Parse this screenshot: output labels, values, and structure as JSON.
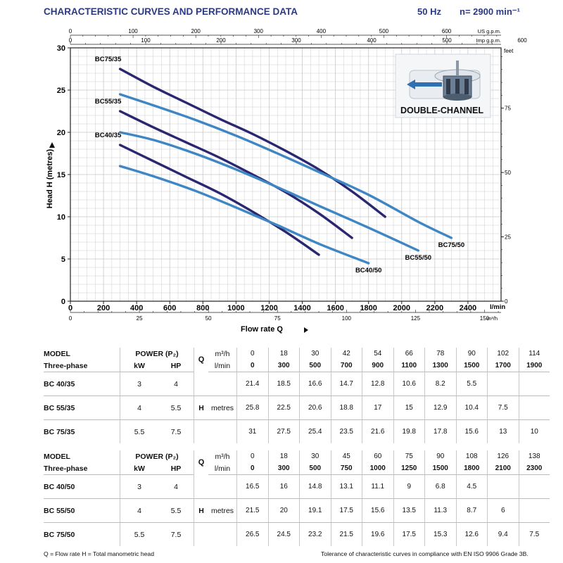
{
  "header": {
    "title": "CHARACTERISTIC CURVES AND PERFORMANCE DATA",
    "freq": "50 Hz",
    "speed": "n= 2900 min⁻¹"
  },
  "badge": {
    "label": "DOUBLE-CHANNEL"
  },
  "colors": {
    "navy": "#2a2770",
    "blue": "#3f86c4",
    "grid": "#c8c8c8",
    "title": "#2b3a82"
  },
  "chart_data": {
    "type": "line",
    "title": "CHARACTERISTIC CURVES AND PERFORMANCE DATA",
    "xlabel": "Flow rate Q",
    "ylabel": "Head H (metres)",
    "xlim": [
      0,
      2600
    ],
    "ylim": [
      0,
      30
    ],
    "x_unit": "l/min",
    "x_ticks": [
      "0",
      "200",
      "400",
      "600",
      "800",
      "1000",
      "1200",
      "1400",
      "1600",
      "1800",
      "2000",
      "2200",
      "2400"
    ],
    "y_ticks": [
      "0",
      "5",
      "10",
      "15",
      "20",
      "25",
      "30"
    ],
    "top_axis_us": {
      "unit": "US g.p.m.",
      "ticks": [
        "0",
        "100",
        "200",
        "300",
        "400",
        "500",
        "600"
      ],
      "lpm_per_unit": 3.785
    },
    "top_axis_imp": {
      "unit": "Imp g.p.m.",
      "ticks": [
        "0",
        "100",
        "200",
        "300",
        "400",
        "500",
        "600"
      ],
      "lpm_per_unit": 4.546
    },
    "right_axis_feet": {
      "unit": "feet",
      "ticks": [
        "0",
        "25",
        "50",
        "75"
      ],
      "m_per_unit": 0.3048
    },
    "bottom_axis_m3h": {
      "unit": "m³/h",
      "ticks": [
        "0",
        "25",
        "50",
        "75",
        "100",
        "125",
        "150"
      ],
      "lpm_per_unit": 16.667
    },
    "grid": true,
    "series": [
      {
        "name": "BC40/35",
        "color": "navy",
        "label_pos": "left",
        "x": [
          300,
          500,
          700,
          900,
          1100,
          1300,
          1500
        ],
        "y": [
          18.5,
          16.6,
          14.7,
          12.8,
          10.6,
          8.2,
          5.5
        ]
      },
      {
        "name": "BC55/35",
        "color": "navy",
        "label_pos": "left",
        "x": [
          300,
          500,
          700,
          900,
          1100,
          1300,
          1500,
          1700
        ],
        "y": [
          22.5,
          20.6,
          18.8,
          17,
          15,
          12.9,
          10.4,
          7.5
        ]
      },
      {
        "name": "BC75/35",
        "color": "navy",
        "label_pos": "left",
        "x": [
          300,
          500,
          700,
          900,
          1100,
          1300,
          1500,
          1700,
          1900
        ],
        "y": [
          27.5,
          25.4,
          23.5,
          21.6,
          19.8,
          17.8,
          15.6,
          13,
          10
        ]
      },
      {
        "name": "BC40/50",
        "color": "blue",
        "label_pos": "below",
        "x": [
          300,
          500,
          750,
          1000,
          1250,
          1500,
          1800
        ],
        "y": [
          16,
          14.8,
          13.1,
          11.1,
          9,
          6.8,
          4.5
        ]
      },
      {
        "name": "BC55/50",
        "color": "blue",
        "label_pos": "below",
        "x": [
          300,
          500,
          750,
          1000,
          1250,
          1500,
          1800,
          2100
        ],
        "y": [
          20,
          19.1,
          17.5,
          15.6,
          13.5,
          11.3,
          8.7,
          6
        ]
      },
      {
        "name": "BC75/50",
        "color": "blue",
        "label_pos": "below",
        "x": [
          300,
          500,
          750,
          1000,
          1250,
          1500,
          1800,
          2100,
          2300
        ],
        "y": [
          24.5,
          23.2,
          21.5,
          19.6,
          17.5,
          15.3,
          12.6,
          9.4,
          7.5
        ]
      }
    ]
  },
  "tables": [
    {
      "head": {
        "model": "MODEL",
        "power": "POWER (P₂)",
        "q": "Q",
        "m3h": "m³/h",
        "phase": "Three-phase",
        "kw": "kW",
        "hp": "HP",
        "lmin": "l/min"
      },
      "m3h": [
        "0",
        "18",
        "30",
        "42",
        "54",
        "66",
        "78",
        "90",
        "102",
        "114"
      ],
      "lmin": [
        "0",
        "300",
        "500",
        "700",
        "900",
        "1100",
        "1300",
        "1500",
        "1700",
        "1900"
      ],
      "h_label": "H",
      "h_unit": "metres",
      "rows": [
        {
          "model": "BC 40/35",
          "kw": "3",
          "hp": "4",
          "values": [
            "21.4",
            "18.5",
            "16.6",
            "14.7",
            "12.8",
            "10.6",
            "8.2",
            "5.5",
            "",
            ""
          ]
        },
        {
          "model": "BC 55/35",
          "kw": "4",
          "hp": "5.5",
          "values": [
            "25.8",
            "22.5",
            "20.6",
            "18.8",
            "17",
            "15",
            "12.9",
            "10.4",
            "7.5",
            ""
          ]
        },
        {
          "model": "BC 75/35",
          "kw": "5.5",
          "hp": "7.5",
          "values": [
            "31",
            "27.5",
            "25.4",
            "23.5",
            "21.6",
            "19.8",
            "17.8",
            "15.6",
            "13",
            "10"
          ]
        }
      ]
    },
    {
      "head": {
        "model": "MODEL",
        "power": "POWER (P₂)",
        "q": "Q",
        "m3h": "m³/h",
        "phase": "Three-phase",
        "kw": "kW",
        "hp": "HP",
        "lmin": "l/min"
      },
      "m3h": [
        "0",
        "18",
        "30",
        "45",
        "60",
        "75",
        "90",
        "108",
        "126",
        "138"
      ],
      "lmin": [
        "0",
        "300",
        "500",
        "750",
        "1000",
        "1250",
        "1500",
        "1800",
        "2100",
        "2300"
      ],
      "h_label": "H",
      "h_unit": "metres",
      "rows": [
        {
          "model": "BC 40/50",
          "kw": "3",
          "hp": "4",
          "values": [
            "16.5",
            "16",
            "14.8",
            "13.1",
            "11.1",
            "9",
            "6.8",
            "4.5",
            "",
            ""
          ]
        },
        {
          "model": "BC 55/50",
          "kw": "4",
          "hp": "5.5",
          "values": [
            "21.5",
            "20",
            "19.1",
            "17.5",
            "15.6",
            "13.5",
            "11.3",
            "8.7",
            "6",
            ""
          ]
        },
        {
          "model": "BC 75/50",
          "kw": "5.5",
          "hp": "7.5",
          "values": [
            "26.5",
            "24.5",
            "23.2",
            "21.5",
            "19.6",
            "17.5",
            "15.3",
            "12.6",
            "9.4",
            "7.5"
          ]
        }
      ]
    }
  ],
  "footer": {
    "legend": "Q = Flow rate   H = Total manometric head",
    "tolerance": "Tolerance of characteristic curves in compliance with EN ISO 9906 Grade 3B."
  }
}
